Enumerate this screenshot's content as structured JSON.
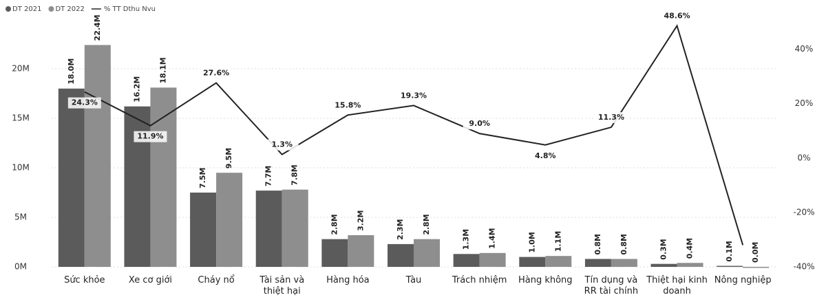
{
  "chart_data": {
    "type": "bar",
    "categories": [
      "Sức khỏe",
      "Xe cơ giới",
      "Cháy nổ",
      "Tài sản và thiệt hại",
      "Hàng hóa",
      "Tàu",
      "Trách nhiệm",
      "Hàng không",
      "Tín dụng và RR tài chính",
      "Thiệt hại kinh doanh",
      "Nông nghiệp"
    ],
    "series": [
      {
        "name": "DT 2021",
        "color": "#5b5b5b",
        "values": [
          18.0,
          16.2,
          7.5,
          7.7,
          2.8,
          2.3,
          1.3,
          1.0,
          0.8,
          0.3,
          0.1
        ],
        "value_labels": [
          "18.0M",
          "16.2M",
          "7.5M",
          "7.7M",
          "2.8M",
          "2.3M",
          "1.3M",
          "1.0M",
          "0.8M",
          "0.3M",
          "0.1M"
        ]
      },
      {
        "name": "DT 2022",
        "color": "#8e8e8e",
        "values": [
          22.4,
          18.1,
          9.5,
          7.8,
          3.2,
          2.8,
          1.4,
          1.1,
          0.8,
          0.4,
          0.0
        ],
        "value_labels": [
          "22.4M",
          "18.1M",
          "9.5M",
          "7.8M",
          "3.2M",
          "2.8M",
          "1.4M",
          "1.1M",
          "0.8M",
          "0.4M",
          "0.0M"
        ]
      },
      {
        "name": "% TT Dthu Nvu",
        "type": "line",
        "axis": "y2",
        "color": "#222222",
        "values": [
          24.3,
          11.9,
          27.6,
          1.3,
          15.8,
          19.3,
          9.0,
          4.8,
          11.3,
          48.6,
          -32
        ],
        "value_labels": [
          "24.3%",
          "11.9%",
          "27.6%",
          "1.3%",
          "15.8%",
          "19.3%",
          "9.0%",
          "4.8%",
          "11.3%",
          "48.6%",
          null
        ]
      }
    ],
    "ylim": [
      0,
      25
    ],
    "yticks": [
      {
        "value": 0,
        "label": "0M"
      },
      {
        "value": 5,
        "label": "5M"
      },
      {
        "value": 10,
        "label": "10M"
      },
      {
        "value": 15,
        "label": "15M"
      },
      {
        "value": 20,
        "label": "20M"
      }
    ],
    "y2lim": [
      -40,
      51
    ],
    "y2ticks": [
      {
        "value": -40,
        "label": "-40%"
      },
      {
        "value": -20,
        "label": "-20%"
      },
      {
        "value": 0,
        "label": "0%"
      },
      {
        "value": 20,
        "label": "20%"
      },
      {
        "value": 40,
        "label": "40%"
      }
    ],
    "grid": true,
    "legend": "top-left"
  }
}
